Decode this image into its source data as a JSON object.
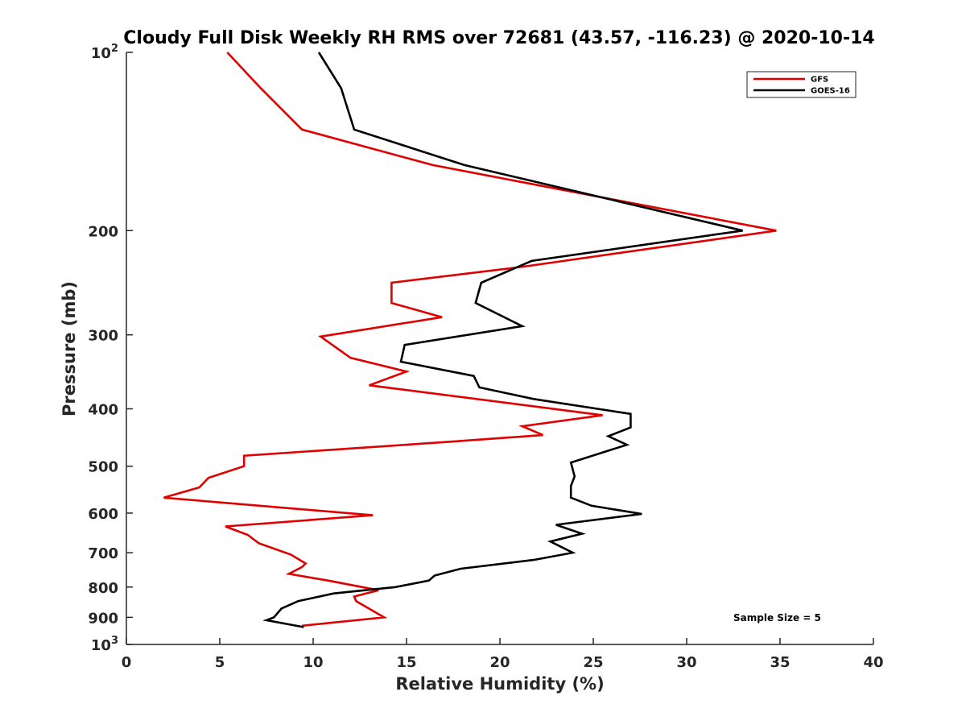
{
  "chart_data": {
    "type": "line",
    "title": "Cloudy Full Disk Weekly RH RMS over 72681 (43.57, -116.23) @ 2020-10-14",
    "xlabel": "Relative Humidity (%)",
    "ylabel": "Pressure (mb)",
    "xlim": [
      0,
      40
    ],
    "ylim": [
      100,
      1000
    ],
    "yscale": "log",
    "y_reversed": true,
    "x_ticks": [
      "0",
      "5",
      "10",
      "15",
      "20",
      "25",
      "30",
      "35",
      "40"
    ],
    "y_ticks": [
      {
        "value": 100,
        "label": "10",
        "sup": "2"
      },
      {
        "value": 200,
        "label": "200",
        "sup": ""
      },
      {
        "value": 300,
        "label": "300",
        "sup": ""
      },
      {
        "value": 400,
        "label": "400",
        "sup": ""
      },
      {
        "value": 500,
        "label": "500",
        "sup": ""
      },
      {
        "value": 600,
        "label": "600",
        "sup": ""
      },
      {
        "value": 700,
        "label": "700",
        "sup": ""
      },
      {
        "value": 800,
        "label": "800",
        "sup": ""
      },
      {
        "value": 900,
        "label": "900",
        "sup": ""
      },
      {
        "value": 1000,
        "label": "10",
        "sup": "3"
      }
    ],
    "grid": false,
    "legend_position": "top-right",
    "annotation": "Sample Size = 5",
    "series": [
      {
        "name": "GFS",
        "color": "#e00000",
        "points": [
          [
            5.4,
            100
          ],
          [
            7.2,
            115
          ],
          [
            9.4,
            135
          ],
          [
            16.4,
            155
          ],
          [
            34.8,
            200
          ],
          [
            21.3,
            230
          ],
          [
            14.2,
            245
          ],
          [
            14.2,
            265
          ],
          [
            16.9,
            280
          ],
          [
            10.4,
            302
          ],
          [
            12.0,
            328
          ],
          [
            15.0,
            346
          ],
          [
            13.0,
            365
          ],
          [
            25.5,
            410
          ],
          [
            21.2,
            428
          ],
          [
            22.3,
            443
          ],
          [
            17.2,
            455
          ],
          [
            6.3,
            480
          ],
          [
            6.3,
            500
          ],
          [
            4.4,
            523
          ],
          [
            3.9,
            543
          ],
          [
            2.0,
            565
          ],
          [
            13.2,
            605
          ],
          [
            5.3,
            632
          ],
          [
            6.5,
            653
          ],
          [
            7.1,
            675
          ],
          [
            8.8,
            705
          ],
          [
            9.6,
            730
          ],
          [
            9.4,
            740
          ],
          [
            8.7,
            760
          ],
          [
            10.8,
            780
          ],
          [
            13.5,
            810
          ],
          [
            12.2,
            830
          ],
          [
            12.3,
            845
          ],
          [
            13.8,
            900
          ],
          [
            9.4,
            930
          ]
        ]
      },
      {
        "name": "GOES-16",
        "color": "#000000",
        "points": [
          [
            10.3,
            100
          ],
          [
            11.5,
            115
          ],
          [
            12.2,
            135
          ],
          [
            18.1,
            155
          ],
          [
            33.0,
            200
          ],
          [
            21.7,
            225
          ],
          [
            19.0,
            245
          ],
          [
            18.7,
            265
          ],
          [
            21.2,
            290
          ],
          [
            14.9,
            312
          ],
          [
            14.7,
            333
          ],
          [
            18.6,
            352
          ],
          [
            18.9,
            368
          ],
          [
            21.8,
            385
          ],
          [
            27.0,
            408
          ],
          [
            27.0,
            430
          ],
          [
            25.8,
            445
          ],
          [
            26.8,
            460
          ],
          [
            23.8,
            493
          ],
          [
            24.0,
            520
          ],
          [
            23.8,
            540
          ],
          [
            23.8,
            565
          ],
          [
            24.9,
            583
          ],
          [
            27.6,
            602
          ],
          [
            23.0,
            628
          ],
          [
            24.4,
            650
          ],
          [
            22.7,
            670
          ],
          [
            23.9,
            700
          ],
          [
            21.8,
            720
          ],
          [
            17.9,
            745
          ],
          [
            16.5,
            765
          ],
          [
            16.2,
            780
          ],
          [
            14.4,
            800
          ],
          [
            11.1,
            820
          ],
          [
            9.2,
            845
          ],
          [
            8.3,
            870
          ],
          [
            7.9,
            900
          ],
          [
            7.5,
            910
          ],
          [
            9.5,
            935
          ]
        ]
      }
    ]
  }
}
